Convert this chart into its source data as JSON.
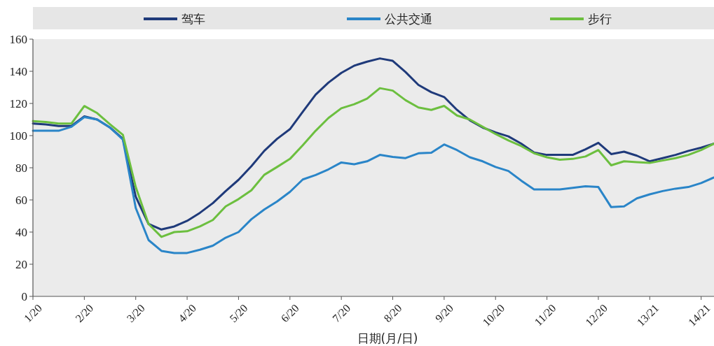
{
  "chart_data": {
    "type": "line",
    "xlabel": "日期(月/日)",
    "legend": "top",
    "grid": false,
    "line_style": "solid",
    "marker": "none",
    "ylim": [
      0,
      160
    ],
    "yticks": [
      0,
      20,
      40,
      60,
      80,
      100,
      120,
      140,
      160
    ],
    "categories": [
      "1/20",
      null,
      null,
      null,
      "2/20",
      null,
      null,
      null,
      "3/20",
      null,
      null,
      null,
      "4/20",
      null,
      null,
      null,
      "5/20",
      null,
      null,
      null,
      "6/20",
      null,
      null,
      null,
      "7/20",
      null,
      null,
      null,
      "8/20",
      null,
      null,
      null,
      "9/20",
      null,
      null,
      null,
      "10/20",
      null,
      null,
      null,
      "11/20",
      null,
      null,
      null,
      "12/20",
      null,
      null,
      null,
      "13/21",
      null,
      null,
      null,
      "14/21",
      null
    ],
    "series": [
      {
        "name": "驾车",
        "color": "#1f3a7a",
        "values": [
          107.5,
          107,
          106,
          106,
          112,
          110,
          105,
          98,
          62,
          45,
          41.6,
          43.5,
          47,
          52,
          58,
          65.5,
          72.5,
          81,
          90.5,
          98,
          104,
          114.8,
          125.5,
          133,
          139,
          143.5,
          146,
          148,
          146.5,
          139.5,
          131.5,
          127,
          124,
          116,
          109.5,
          105,
          102,
          99.5,
          95,
          89.5,
          88,
          88,
          88,
          91.5,
          95.5,
          88.5,
          90,
          87.5,
          84,
          86,
          88,
          90.5,
          92.5,
          95
        ]
      },
      {
        "name": "公共交通",
        "color": "#2a85c8",
        "values": [
          103,
          103,
          103,
          105.5,
          111.5,
          110,
          105,
          97.5,
          55,
          35,
          28.3,
          27,
          27,
          29,
          31.5,
          36.5,
          40,
          48,
          54,
          59,
          65,
          72.7,
          75.5,
          79,
          83.3,
          82.2,
          84,
          88,
          86.7,
          86,
          89,
          89.3,
          94.5,
          91,
          86.5,
          84,
          80.5,
          78,
          72,
          66.5,
          66.5,
          66.5,
          67.5,
          68.5,
          68,
          55.5,
          56,
          61,
          63.5,
          65.5,
          67,
          68,
          70.5,
          74
        ]
      },
      {
        "name": "步行",
        "color": "#6cbf3f",
        "values": [
          109,
          108.5,
          107.5,
          107.5,
          118.4,
          114,
          107,
          100.5,
          68,
          45,
          37,
          40,
          40.5,
          43.5,
          47.5,
          56,
          60.5,
          66,
          75.6,
          80.5,
          85.5,
          94,
          103,
          111,
          117,
          119.5,
          123,
          129.5,
          128,
          122,
          117.5,
          116,
          118.5,
          112.5,
          110,
          105.5,
          101,
          97,
          93.5,
          89,
          86.5,
          85,
          85.5,
          87,
          91,
          81.5,
          84,
          83.5,
          83,
          84.5,
          86,
          88,
          91,
          95
        ]
      }
    ]
  }
}
